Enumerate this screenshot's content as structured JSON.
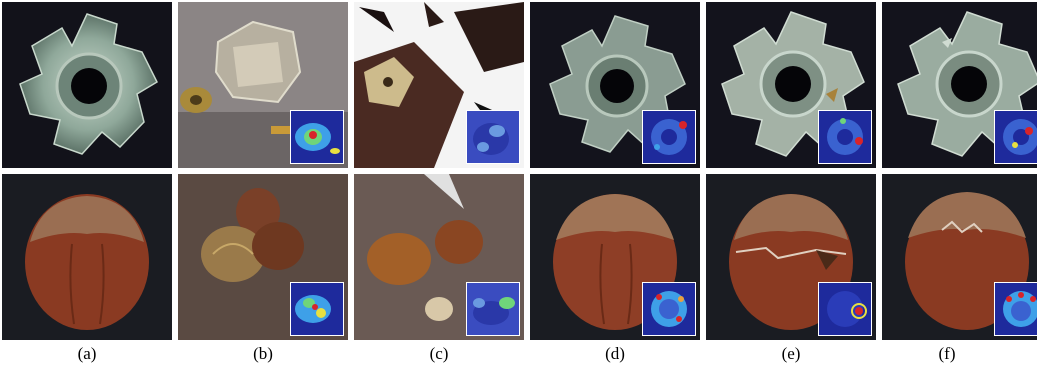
{
  "captions": [
    "(a)",
    "(b)",
    "(c)",
    "(d)",
    "(e)",
    "(f)"
  ],
  "rows": [
    {
      "object": "nut-washer",
      "background": "#13131c"
    },
    {
      "object": "hazelnut",
      "background": "#1a1c22"
    }
  ],
  "colors": {
    "heatmap_low": "#1e2a9c",
    "heatmap_mid": "#3ea0e8",
    "heatmap_high": "#d8242a",
    "glass": "#8fa89a",
    "hazelnut": "#8a3a22"
  }
}
